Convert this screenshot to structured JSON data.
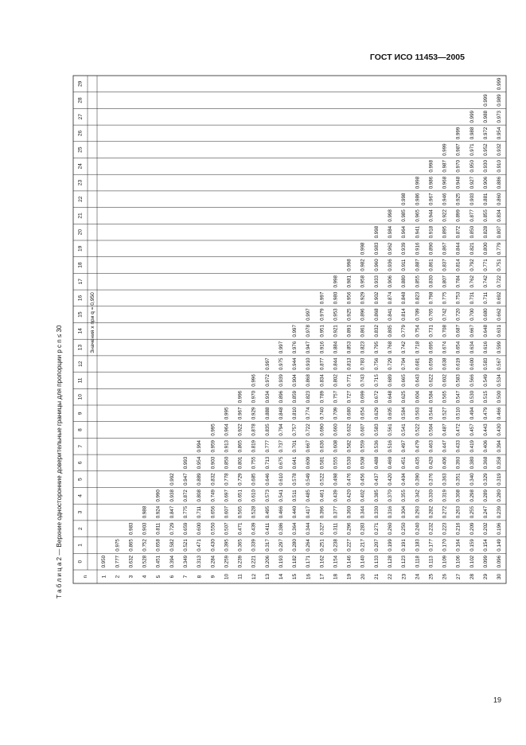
{
  "header": "ГОСТ ИСО 11453—2005",
  "page_number": "19",
  "table": {
    "title": "Т а б л и ц а 2 — Верхние односторонние доверительные границы для пропорции p с n ≤ 30",
    "subheader": "Значения x при q = 0,950",
    "n_label": "n",
    "columns": [
      0,
      1,
      2,
      3,
      4,
      5,
      6,
      7,
      8,
      9,
      10,
      11,
      12,
      13,
      14,
      15,
      16,
      17,
      18,
      19,
      20,
      21,
      22,
      23,
      24,
      25,
      26,
      27,
      28,
      29
    ],
    "rows": [
      {
        "n": 1,
        "values": [
          "0.950"
        ]
      },
      {
        "n": 2,
        "values": [
          "0.777",
          "0.975"
        ]
      },
      {
        "n": 3,
        "values": [
          "0.632",
          "0.865",
          "0.983"
        ]
      },
      {
        "n": 4,
        "values": [
          "0.528",
          "0.752",
          "0.903",
          "0.988"
        ]
      },
      {
        "n": 5,
        "values": [
          "0.451",
          "0.658",
          "0.811",
          "0.924",
          "0.990"
        ]
      },
      {
        "n": 6,
        "values": [
          "0.394",
          "0.582",
          "0.729",
          "0.847",
          "0.938",
          "0.992"
        ]
      },
      {
        "n": 7,
        "values": [
          "0.349",
          "0.521",
          "0.659",
          "0.775",
          "0.872",
          "0.947",
          "0.993"
        ]
      },
      {
        "n": 8,
        "values": [
          "0.313",
          "0.471",
          "0.600",
          "0.711",
          "0.808",
          "0.889",
          "0.954",
          "0.994"
        ]
      },
      {
        "n": 9,
        "values": [
          "0.284",
          "0.430",
          "0.550",
          "0.656",
          "0.749",
          "0.832",
          "0.903",
          "0.959",
          "0.995"
        ]
      },
      {
        "n": 10,
        "values": [
          "0.259",
          "0.395",
          "0.507",
          "0.607",
          "0.697",
          "0.778",
          "0.850",
          "0.913",
          "0.964",
          "0.995"
        ]
      },
      {
        "n": 11,
        "values": [
          "0.239",
          "0.365",
          "0.471",
          "0.565",
          "0.651",
          "0.729",
          "0.801",
          "0.865",
          "0.922",
          "0.967",
          "0.996"
        ]
      },
      {
        "n": 12,
        "values": [
          "0.221",
          "0.339",
          "0.439",
          "0.528",
          "0.610",
          "0.685",
          "0.755",
          "0.819",
          "0.878",
          "0.929",
          "0.970",
          "0.996"
        ]
      },
      {
        "n": 13,
        "values": [
          "0.206",
          "0.317",
          "0.411",
          "0.495",
          "0.573",
          "0.646",
          "0.713",
          "0.777",
          "0.835",
          "0.888",
          "0.934",
          "0.972",
          "0.997"
        ]
      },
      {
        "n": 14,
        "values": [
          "0.193",
          "0.297",
          "0.386",
          "0.466",
          "0.541",
          "0.610",
          "0.675",
          "0.737",
          "0.794",
          "0.848",
          "0.896",
          "0.939",
          "0.975",
          "0.997"
        ]
      },
      {
        "n": 15,
        "values": [
          "0.182",
          "0.280",
          "0.364",
          "0.440",
          "0.511",
          "0.578",
          "0.641",
          "0.701",
          "0.757",
          "0.810",
          "0.859",
          "0.904",
          "0.944",
          "0.976",
          "0.997"
        ]
      },
      {
        "n": 16,
        "values": [
          "0.171",
          "0.264",
          "0.344",
          "0.417",
          "0.485",
          "0.549",
          "0.609",
          "0.667",
          "0.722",
          "0.774",
          "0.823",
          "0.868",
          "0.910",
          "0.947",
          "0.978",
          "0.997"
        ]
      },
      {
        "n": 17,
        "values": [
          "0.162",
          "0.251",
          "0.327",
          "0.396",
          "0.461",
          "0.522",
          "0.581",
          "0.636",
          "0.690",
          "0.740",
          "0.789",
          "0.834",
          "0.877",
          "0.916",
          "0.951",
          "0.979",
          "0.997"
        ]
      },
      {
        "n": 18,
        "values": [
          "0.154",
          "0.238",
          "0.311",
          "0.377",
          "0.439",
          "0.498",
          "0.555",
          "0.608",
          "0.660",
          "0.709",
          "0.757",
          "0.802",
          "0.844",
          "0.884",
          "0.921",
          "0.953",
          "0.980",
          "0.998"
        ]
      },
      {
        "n": 19,
        "values": [
          "0.146",
          "0.227",
          "0.296",
          "0.360",
          "0.420",
          "0.476",
          "0.530",
          "0.582",
          "0.632",
          "0.680",
          "0.727",
          "0.771",
          "0.813",
          "0.853",
          "0.891",
          "0.925",
          "0.956",
          "0.981",
          "0.998"
        ]
      },
      {
        "n": 20,
        "values": [
          "0.140",
          "0.217",
          "0.283",
          "0.344",
          "0.402",
          "0.456",
          "0.508",
          "0.559",
          "0.607",
          "0.654",
          "0.699",
          "0.743",
          "0.783",
          "0.823",
          "0.861",
          "0.896",
          "0.929",
          "0.958",
          "0.982",
          "0.998"
        ]
      },
      {
        "n": 21,
        "values": [
          "0.133",
          "0.207",
          "0.271",
          "0.330",
          "0.385",
          "0.437",
          "0.488",
          "0.536",
          "0.583",
          "0.629",
          "0.672",
          "0.715",
          "0.756",
          "0.795",
          "0.832",
          "0.868",
          "0.902",
          "0.933",
          "0.960",
          "0.983",
          "0.998"
        ]
      },
      {
        "n": 22,
        "values": [
          "0.128",
          "0.199",
          "0.260",
          "0.316",
          "0.370",
          "0.420",
          "0.469",
          "0.516",
          "0.561",
          "0.605",
          "0.648",
          "0.689",
          "0.729",
          "0.768",
          "0.805",
          "0.841",
          "0.874",
          "0.906",
          "0.936",
          "0.962",
          "0.984",
          "0.998"
        ]
      },
      {
        "n": 23,
        "values": [
          "0.123",
          "0.191",
          "0.250",
          "0.304",
          "0.355",
          "0.404",
          "0.451",
          "0.497",
          "0.541",
          "0.584",
          "0.625",
          "0.665",
          "0.704",
          "0.742",
          "0.779",
          "0.814",
          "0.848",
          "0.880",
          "0.911",
          "0.939",
          "0.964",
          "0.985",
          "0.998"
        ]
      },
      {
        "n": 24,
        "values": [
          "0.118",
          "0.183",
          "0.240",
          "0.293",
          "0.342",
          "0.390",
          "0.435",
          "0.479",
          "0.522",
          "0.563",
          "0.604",
          "0.643",
          "0.681",
          "0.718",
          "0.754",
          "0.789",
          "0.823",
          "0.855",
          "0.887",
          "0.916",
          "0.941",
          "0.965",
          "0.986",
          "0.998"
        ]
      },
      {
        "n": 25,
        "values": [
          "0.113",
          "0.177",
          "0.232",
          "0.282",
          "0.330",
          "0.376",
          "0.420",
          "0.463",
          "0.504",
          "0.544",
          "0.584",
          "0.622",
          "0.659",
          "0.695",
          "0.731",
          "0.765",
          "0.798",
          "0.830",
          "0.861",
          "0.890",
          "0.918",
          "0.944",
          "0.967",
          "0.986",
          "0.998"
        ]
      },
      {
        "n": 26,
        "values": [
          "0.109",
          "0.170",
          "0.223",
          "0.272",
          "0.319",
          "0.363",
          "0.406",
          "0.447",
          "0.487",
          "0.527",
          "0.565",
          "0.602",
          "0.638",
          "0.674",
          "0.708",
          "0.742",
          "0.775",
          "0.807",
          "0.837",
          "0.867",
          "0.895",
          "0.922",
          "0.946",
          "0.968",
          "0.987",
          "0.999"
        ]
      },
      {
        "n": 27,
        "values": [
          "0.106",
          "0.164",
          "0.216",
          "0.263",
          "0.308",
          "0.351",
          "0.393",
          "0.433",
          "0.472",
          "0.510",
          "0.547",
          "0.583",
          "0.619",
          "0.654",
          "0.687",
          "0.720",
          "0.753",
          "0.784",
          "0.814",
          "0.844",
          "0.872",
          "0.899",
          "0.925",
          "0.948",
          "0.970",
          "0.987",
          "0.999"
        ]
      },
      {
        "n": 28,
        "values": [
          "0.102",
          "0.159",
          "0.209",
          "0.255",
          "0.298",
          "0.340",
          "0.380",
          "0.419",
          "0.457",
          "0.494",
          "0.530",
          "0.566",
          "0.600",
          "0.634",
          "0.667",
          "0.700",
          "0.731",
          "0.762",
          "0.792",
          "0.821",
          "0.850",
          "0.877",
          "0.903",
          "0.927",
          "0.950",
          "0.971",
          "0.988",
          "0.999"
        ]
      },
      {
        "n": 29,
        "values": [
          "0.099",
          "0.154",
          "0.202",
          "0.247",
          "0.289",
          "0.329",
          "0.368",
          "0.406",
          "0.443",
          "0.479",
          "0.515",
          "0.549",
          "0.583",
          "0.616",
          "0.648",
          "0.680",
          "0.711",
          "0.742",
          "0.771",
          "0.800",
          "0.828",
          "0.855",
          "0.881",
          "0.906",
          "0.930",
          "0.952",
          "0.972",
          "0.988",
          "0.999"
        ]
      },
      {
        "n": 30,
        "values": [
          "0.096",
          "0.149",
          "0.196",
          "0.239",
          "0.280",
          "0.319",
          "0.358",
          "0.394",
          "0.430",
          "0.466",
          "0.500",
          "0.534",
          "0.567",
          "0.599",
          "0.631",
          "0.662",
          "0.692",
          "0.722",
          "0.751",
          "0.779",
          "0.807",
          "0.834",
          "0.860",
          "0.886",
          "0.910",
          "0.932",
          "0.954",
          "0.973",
          "0.989",
          "0.999"
        ]
      }
    ]
  }
}
